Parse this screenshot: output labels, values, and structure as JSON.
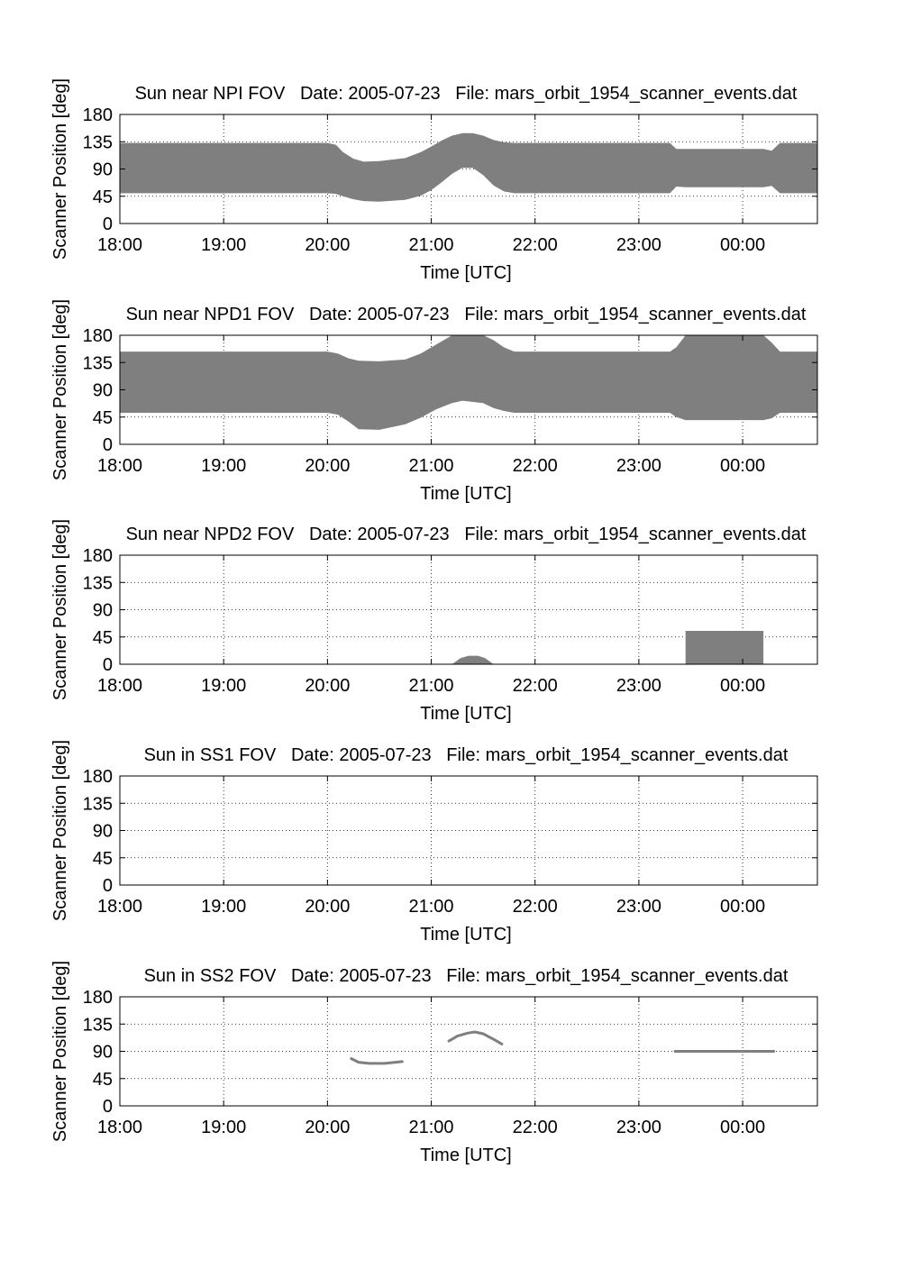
{
  "figure": {
    "background": "#ffffff",
    "fill_color": "#7f7f7f"
  },
  "chart_data": [
    {
      "type": "area",
      "title": "Sun near NPI FOV   Date: 2005-07-23   File: mars_orbit_1954_scanner_events.dat",
      "xlabel": "Time [UTC]",
      "ylabel": "Scanner Position [deg]",
      "x_ticks": [
        "18:00",
        "19:00",
        "20:00",
        "21:00",
        "22:00",
        "23:00",
        "00:00"
      ],
      "x_tick_hours": [
        18,
        19,
        20,
        21,
        22,
        23,
        24
      ],
      "xlim_hours": [
        18.0,
        24.72
      ],
      "y_ticks": [
        0,
        45,
        90,
        135,
        180
      ],
      "ylim": [
        0,
        180
      ],
      "grid": true,
      "bands": [
        {
          "x_hours": [
            18.0,
            20.0,
            20.08,
            20.15,
            20.25,
            20.35,
            20.5,
            20.75,
            20.9,
            21.0,
            21.1,
            21.2,
            21.3,
            21.4,
            21.5,
            21.6,
            21.7,
            21.8,
            22.0,
            23.3,
            23.36,
            23.45,
            23.6,
            24.0,
            24.2,
            24.28,
            24.36,
            24.72
          ],
          "upper": [
            133,
            133,
            130,
            118,
            107,
            102,
            103,
            108,
            118,
            127,
            137,
            145,
            149,
            149,
            145,
            138,
            134,
            133,
            133,
            133,
            123,
            123,
            123,
            123,
            123,
            120,
            133,
            133
          ],
          "lower": [
            50,
            50,
            49,
            45,
            40,
            37,
            36,
            39,
            46,
            55,
            68,
            82,
            92,
            92,
            80,
            63,
            53,
            50,
            50,
            50,
            61,
            60,
            60,
            60,
            60,
            62,
            50,
            50
          ]
        }
      ]
    },
    {
      "type": "area",
      "title": "Sun near NPD1 FOV   Date: 2005-07-23   File: mars_orbit_1954_scanner_events.dat",
      "xlabel": "Time [UTC]",
      "ylabel": "Scanner Position [deg]",
      "x_ticks": [
        "18:00",
        "19:00",
        "20:00",
        "21:00",
        "22:00",
        "23:00",
        "00:00"
      ],
      "x_tick_hours": [
        18,
        19,
        20,
        21,
        22,
        23,
        24
      ],
      "xlim_hours": [
        18.0,
        24.72
      ],
      "y_ticks": [
        0,
        45,
        90,
        135,
        180
      ],
      "ylim": [
        0,
        180
      ],
      "grid": true,
      "bands": [
        {
          "x_hours": [
            18.0,
            20.0,
            20.1,
            20.2,
            20.3,
            20.5,
            20.75,
            20.9,
            21.05,
            21.2,
            21.3,
            21.5,
            21.6,
            21.7,
            21.8,
            22.0,
            23.3,
            23.36,
            23.45,
            23.6,
            24.0,
            24.2,
            24.28,
            24.36,
            24.72
          ],
          "upper": [
            153,
            153,
            150,
            142,
            138,
            137,
            140,
            150,
            165,
            180,
            180,
            180,
            172,
            160,
            153,
            153,
            153,
            160,
            180,
            180,
            180,
            180,
            168,
            153,
            153
          ],
          "lower": [
            52,
            52,
            49,
            38,
            25,
            24,
            33,
            44,
            58,
            68,
            72,
            68,
            60,
            55,
            52,
            52,
            52,
            45,
            40,
            40,
            40,
            40,
            43,
            52,
            52
          ]
        }
      ]
    },
    {
      "type": "area",
      "title": "Sun near NPD2 FOV   Date: 2005-07-23   File: mars_orbit_1954_scanner_events.dat",
      "xlabel": "Time [UTC]",
      "ylabel": "Scanner Position [deg]",
      "x_ticks": [
        "18:00",
        "19:00",
        "20:00",
        "21:00",
        "22:00",
        "23:00",
        "00:00"
      ],
      "x_tick_hours": [
        18,
        19,
        20,
        21,
        22,
        23,
        24
      ],
      "xlim_hours": [
        18.0,
        24.72
      ],
      "y_ticks": [
        0,
        45,
        90,
        135,
        180
      ],
      "ylim": [
        0,
        180
      ],
      "grid": true,
      "bands": [
        {
          "x_hours": [
            21.2,
            21.28,
            21.36,
            21.45,
            21.52,
            21.6
          ],
          "upper": [
            0,
            10,
            14,
            14,
            10,
            0
          ],
          "lower": [
            0,
            0,
            0,
            0,
            0,
            0
          ]
        },
        {
          "x_hours": [
            23.45,
            23.47,
            24.18,
            24.2
          ],
          "upper": [
            55,
            55,
            55,
            55
          ],
          "lower": [
            0,
            0,
            0,
            0
          ]
        }
      ]
    },
    {
      "type": "area",
      "title": "Sun in SS1 FOV   Date: 2005-07-23   File: mars_orbit_1954_scanner_events.dat",
      "xlabel": "Time [UTC]",
      "ylabel": "Scanner Position [deg]",
      "x_ticks": [
        "18:00",
        "19:00",
        "20:00",
        "21:00",
        "22:00",
        "23:00",
        "00:00"
      ],
      "x_tick_hours": [
        18,
        19,
        20,
        21,
        22,
        23,
        24
      ],
      "xlim_hours": [
        18.0,
        24.72
      ],
      "y_ticks": [
        0,
        45,
        90,
        135,
        180
      ],
      "ylim": [
        0,
        180
      ],
      "grid": true,
      "bands": []
    },
    {
      "type": "line",
      "title": "Sun in SS2 FOV   Date: 2005-07-23   File: mars_orbit_1954_scanner_events.dat",
      "xlabel": "Time [UTC]",
      "ylabel": "Scanner Position [deg]",
      "x_ticks": [
        "18:00",
        "19:00",
        "20:00",
        "21:00",
        "22:00",
        "23:00",
        "00:00"
      ],
      "x_tick_hours": [
        18,
        19,
        20,
        21,
        22,
        23,
        24
      ],
      "xlim_hours": [
        18.0,
        24.72
      ],
      "y_ticks": [
        0,
        45,
        90,
        135,
        180
      ],
      "ylim": [
        0,
        180
      ],
      "grid": true,
      "lines": [
        {
          "x_hours": [
            20.23,
            20.3,
            20.4,
            20.55,
            20.72
          ],
          "y": [
            78,
            72,
            70,
            70,
            73
          ]
        },
        {
          "x_hours": [
            21.17,
            21.25,
            21.35,
            21.42,
            21.5,
            21.6,
            21.68
          ],
          "y": [
            107,
            115,
            120,
            122,
            119,
            110,
            102
          ]
        },
        {
          "x_hours": [
            23.35,
            24.3
          ],
          "y": [
            90,
            90
          ]
        }
      ]
    }
  ]
}
